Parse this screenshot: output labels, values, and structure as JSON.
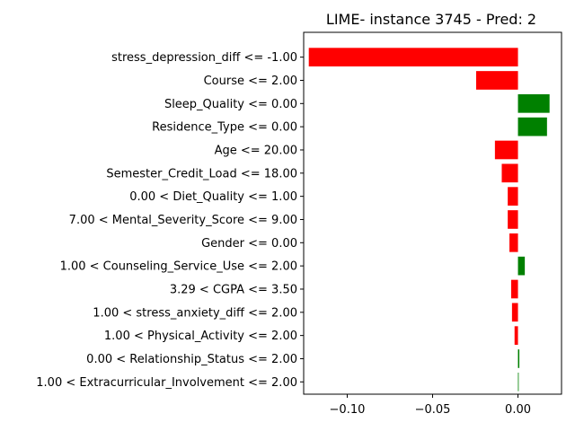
{
  "chart_data": {
    "type": "bar",
    "orientation": "horizontal",
    "title": "LIME- instance 3745 - Pred: 2",
    "xlabel": "",
    "ylabel": "",
    "xlim": [
      -0.1255,
      0.0255
    ],
    "xticks": [
      -0.1,
      -0.05,
      0.0
    ],
    "xtick_labels": [
      "−0.10",
      "−0.05",
      "0.00"
    ],
    "grid": false,
    "positive_color": "#008000",
    "negative_color": "#ff0000",
    "categories": [
      "stress_depression_diff <= -1.00",
      "Course <= 2.00",
      "Sleep_Quality <= 0.00",
      "Residence_Type <= 0.00",
      "Age <= 20.00",
      "Semester_Credit_Load <= 18.00",
      "0.00 < Diet_Quality <= 1.00",
      "7.00 < Mental_Severity_Score <= 9.00",
      "Gender <= 0.00",
      "1.00 < Counseling_Service_Use <= 2.00",
      "3.29 < CGPA <= 3.50",
      "1.00 < stress_anxiety_diff <= 2.00",
      "1.00 < Physical_Activity <= 2.00",
      "0.00 < Relationship_Status <= 2.00",
      "1.00 < Extracurricular_Involvement <= 2.00"
    ],
    "values": [
      -0.1225,
      -0.0245,
      0.0185,
      0.017,
      -0.0135,
      -0.0095,
      -0.006,
      -0.006,
      -0.005,
      0.004,
      -0.004,
      -0.0035,
      -0.002,
      0.0008,
      0.0003
    ]
  }
}
